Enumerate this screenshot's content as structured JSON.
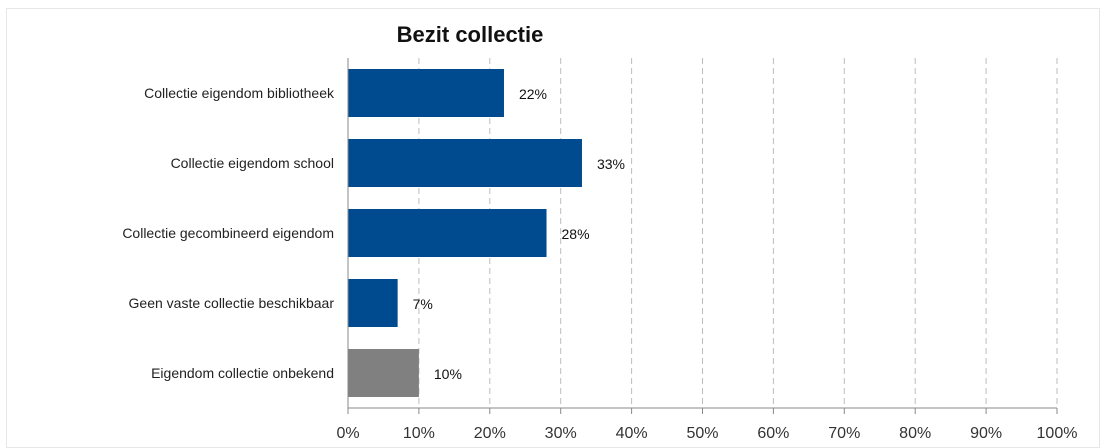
{
  "chart_data": {
    "type": "bar",
    "orientation": "horizontal",
    "title": "Bezit collectie",
    "categories": [
      "Collectie eigendom bibliotheek",
      "Collectie eigendom school",
      "Collectie gecombineerd eigendom",
      "Geen vaste collectie beschikbaar",
      "Eigendom collectie onbekend"
    ],
    "values": [
      22,
      33,
      28,
      7,
      10
    ],
    "value_labels": [
      "22%",
      "33%",
      "28%",
      "7%",
      "10%"
    ],
    "bar_colors": [
      "#004a8f",
      "#004a8f",
      "#004a8f",
      "#004a8f",
      "#808080"
    ],
    "xlim": [
      0,
      100
    ],
    "x_ticks": [
      "0%",
      "10%",
      "20%",
      "30%",
      "40%",
      "50%",
      "60%",
      "70%",
      "80%",
      "90%",
      "100%"
    ],
    "grid": "vertical dashed",
    "xlabel": "",
    "ylabel": ""
  }
}
